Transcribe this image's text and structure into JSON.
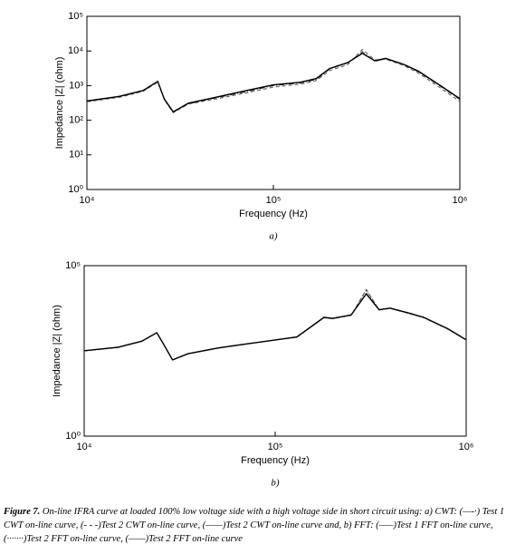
{
  "chart_data": [
    {
      "type": "line",
      "xlabel": "Frequency (Hz)",
      "ylabel": "Impedance |Z| (ohm)",
      "panel": "a)",
      "log_x": true,
      "log_y": true,
      "xlim": [
        10000,
        1000000
      ],
      "ylim": [
        1,
        100000
      ],
      "xticks": [
        {
          "value": 10000,
          "label": "10⁴"
        },
        {
          "value": 100000,
          "label": "10⁵"
        },
        {
          "value": 1000000,
          "label": "10⁶"
        }
      ],
      "yticks": [
        {
          "value": 1,
          "label": "10⁰"
        },
        {
          "value": 10,
          "label": "10¹"
        },
        {
          "value": 100,
          "label": "10²"
        },
        {
          "value": 1000,
          "label": "10³"
        },
        {
          "value": 10000,
          "label": "10⁴"
        },
        {
          "value": 100000,
          "label": "10⁵"
        }
      ],
      "x": [
        10000,
        15000,
        20000,
        24000,
        26000,
        29000,
        35000,
        50000,
        70000,
        100000,
        140000,
        170000,
        200000,
        250000,
        300000,
        350000,
        400000,
        500000,
        600000,
        800000,
        1000000
      ],
      "series": [
        {
          "color": "#222",
          "dash": "6 2 1 2",
          "values": [
            350,
            480,
            700,
            1300,
            400,
            170,
            300,
            450,
            650,
            1000,
            1200,
            1500,
            3000,
            4500,
            9500,
            5000,
            6000,
            4000,
            2500,
            900,
            400
          ]
        },
        {
          "color": "#555",
          "dash": "4 3",
          "values": [
            340,
            460,
            680,
            1250,
            390,
            165,
            290,
            420,
            600,
            900,
            1100,
            1400,
            2700,
            4000,
            11000,
            5500,
            5800,
            3800,
            2300,
            800,
            350
          ]
        },
        {
          "color": "#000",
          "dash": "",
          "values": [
            360,
            490,
            720,
            1320,
            410,
            175,
            310,
            470,
            700,
            1050,
            1250,
            1600,
            3100,
            4600,
            8500,
            5200,
            6100,
            4100,
            2600,
            950,
            420
          ]
        }
      ]
    },
    {
      "type": "line",
      "xlabel": "Frequency (Hz)",
      "ylabel": "Impedance |Z| (ohm)",
      "panel": "b)",
      "log_x": true,
      "log_y": true,
      "xlim": [
        10000,
        1000000
      ],
      "ylim": [
        1,
        100000
      ],
      "xticks": [
        {
          "value": 10000,
          "label": "10⁴"
        },
        {
          "value": 100000,
          "label": "10⁵"
        },
        {
          "value": 1000000,
          "label": "10⁶"
        }
      ],
      "yticks": [
        {
          "value": 1,
          "label": "10⁰"
        },
        {
          "value": 100000,
          "label": "10⁵"
        }
      ],
      "x": [
        10000,
        15000,
        20000,
        24000,
        26000,
        29000,
        35000,
        50000,
        70000,
        100000,
        130000,
        180000,
        200000,
        250000,
        300000,
        350000,
        400000,
        500000,
        600000,
        800000,
        1000000
      ],
      "series": [
        {
          "color": "#444",
          "dash": "5 2",
          "values": [
            316,
            400,
            600,
            1070,
            500,
            170,
            260,
            380,
            500,
            660,
            800,
            3000,
            2800,
            3500,
            20000,
            5000,
            5600,
            4000,
            3000,
            1400,
            660
          ]
        },
        {
          "color": "#777",
          "dash": "1 2",
          "values": [
            310,
            390,
            590,
            1050,
            490,
            168,
            255,
            370,
            490,
            650,
            780,
            2900,
            2700,
            3400,
            18000,
            5200,
            5500,
            3900,
            2900,
            1350,
            640
          ]
        },
        {
          "color": "#000",
          "dash": "",
          "values": [
            320,
            405,
            610,
            1080,
            505,
            172,
            262,
            385,
            505,
            665,
            810,
            3050,
            2850,
            3600,
            15000,
            5100,
            5700,
            4100,
            3050,
            1420,
            670
          ]
        }
      ]
    }
  ],
  "caption": {
    "label": "Figure 7.",
    "text": "On-line IFRA curve at loaded 100% low voltage side with a high voltage side in short circuit using: a) CWT: (—-·) Test 1 CWT on-line curve, (- - -)Test 2 CWT on-line curve, (——)Test 2 CWT on-line curve and, b) FFT: (–––)Test 1 FFT on-line curve, (·······)Test 2 FFT on-line curve, (——)Test 2 FFT on-line curve"
  }
}
